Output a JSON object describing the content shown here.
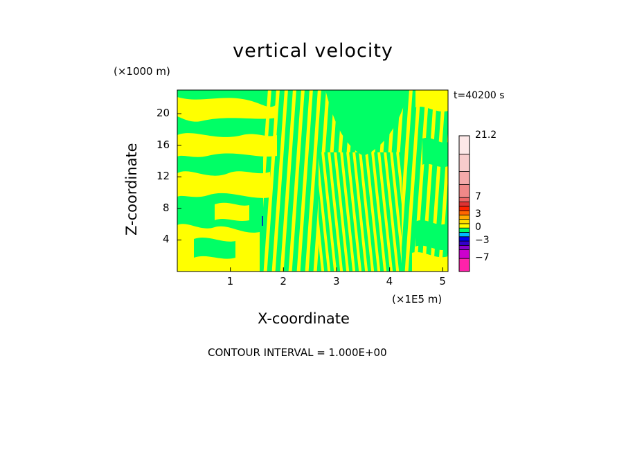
{
  "chart_data": {
    "type": "heatmap",
    "title": "vertical velocity",
    "xlabel": "X-coordinate",
    "ylabel": "Z-coordinate",
    "x_unit": "(×1E5 m)",
    "z_unit": "(×1000 m)",
    "time_label": "t=40200 s",
    "contour_interval_label": "CONTOUR INTERVAL = 1.000E+00",
    "xlim": [
      0,
      5.1
    ],
    "ylim": [
      0,
      23
    ],
    "xticks": [
      "1",
      "2",
      "3",
      "4",
      "5"
    ],
    "yticks": [
      "4",
      "8",
      "12",
      "16",
      "20"
    ],
    "colorbar": {
      "range": [
        -10,
        21.2
      ],
      "tick_labels": [
        "21.2",
        "7",
        "3",
        "0",
        "−3",
        "−7"
      ],
      "tick_values": [
        21.2,
        7,
        3,
        0,
        -3,
        -7
      ],
      "levels": [
        {
          "min": -10,
          "max": -7,
          "color": "#ff22aa"
        },
        {
          "min": -7,
          "max": -5,
          "color": "#cc00cc"
        },
        {
          "min": -5,
          "max": -4,
          "color": "#8800cc"
        },
        {
          "min": -4,
          "max": -3,
          "color": "#3300cc"
        },
        {
          "min": -3,
          "max": -2,
          "color": "#0000ee"
        },
        {
          "min": -2,
          "max": -1,
          "color": "#00bbff"
        },
        {
          "min": -1,
          "max": 0,
          "color": "#00ff66"
        },
        {
          "min": 0,
          "max": 1,
          "color": "#ffff00"
        },
        {
          "min": 1,
          "max": 2,
          "color": "#ffdd00"
        },
        {
          "min": 2,
          "max": 3,
          "color": "#ffaa00"
        },
        {
          "min": 3,
          "max": 4,
          "color": "#ff6600"
        },
        {
          "min": 4,
          "max": 5,
          "color": "#ff2200"
        },
        {
          "min": 5,
          "max": 6,
          "color": "#dd3333"
        },
        {
          "min": 6,
          "max": 7,
          "color": "#ee6666"
        },
        {
          "min": 7,
          "max": 10,
          "color": "#f08888"
        },
        {
          "min": 10,
          "max": 13,
          "color": "#f4aaaa"
        },
        {
          "min": 13,
          "max": 17,
          "color": "#f8cccc"
        },
        {
          "min": 17,
          "max": 21.2,
          "color": "#fde8e8"
        }
      ]
    },
    "field_colors": {
      "positive": "#ffff00",
      "negative": "#00ff66"
    }
  }
}
